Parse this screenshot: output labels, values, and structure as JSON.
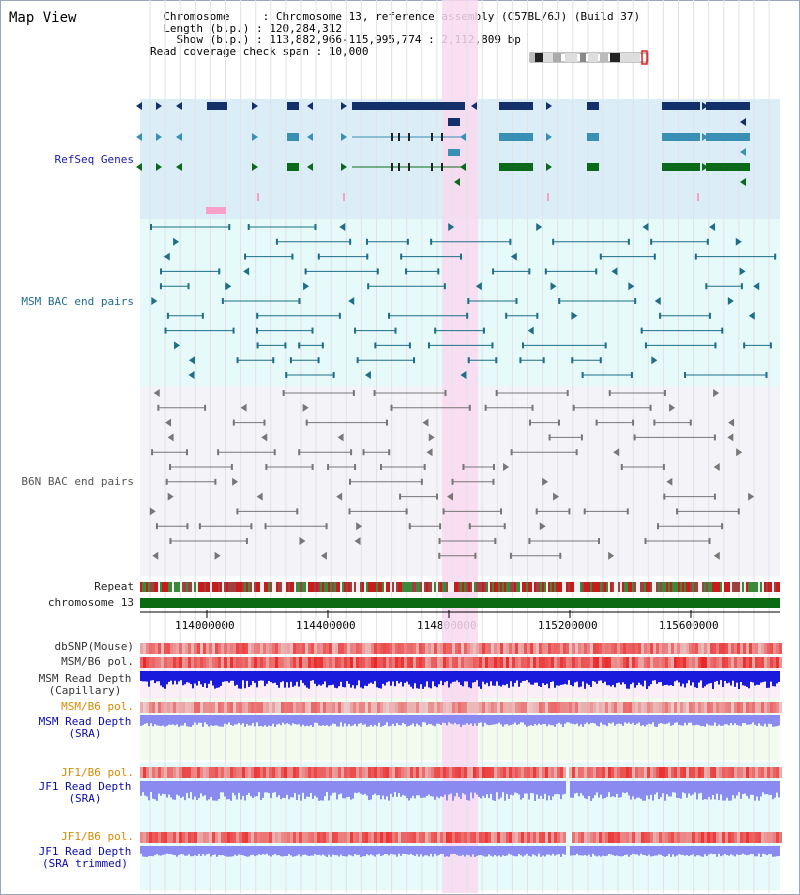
{
  "header": {
    "title": "Map View",
    "info_lines": [
      "  Chromosome     : Chromosome 13, reference assembly (C57BL/6J) (Build 37)",
      "  Length (b.p.) : 120,284,312",
      "    Show (b.p.) : 113,882,966-115,995,774 : 2,112,809 bp",
      "Read coverage check span : 10,000"
    ]
  },
  "tracks": {
    "refseq": "RefSeq Genes",
    "msm_bac": "MSM BAC end pairs",
    "b6n_bac": "B6N BAC end pairs",
    "repeat": "Repeat",
    "chromosome": "chromosome 13",
    "dbsnp": "dbSNP(Mouse)",
    "msm_b6_pol": "MSM/B6 pol.",
    "msm_depth_cap": "MSM Read Depth\n(Capillary)",
    "msm_b6_pol2": "MSM/B6 pol.",
    "msm_depth_sra": "MSM Read Depth\n(SRA)",
    "jf1_b6_pol": "JF1/B6 pol.",
    "jf1_depth_sra": "JF1 Read Depth\n(SRA)",
    "jf1_b6_pol2": "JF1/B6 pol.",
    "jf1_depth_trim": "JF1 Read Depth\n(SRA trimmed)"
  },
  "axis": {
    "ticks": [
      "114000000",
      "114400000",
      "114800000",
      "115200000",
      "115600000"
    ]
  },
  "colors": {
    "refseq_bg": "#dbeef8",
    "msm_bg": "#e6fafa",
    "b6n_bg": "#f3f3f8",
    "highlight": "#f9d8f0",
    "refseq_navy": "#14306a",
    "refseq_teal": "#3a8fb5",
    "refseq_green": "#0a6a1a",
    "msm_line": "#1e6e88",
    "b6n_line": "#777777",
    "chrom_green": "#0b6b12",
    "depth_blue": "#1a1adc",
    "depth_light": "#8a8af0"
  }
}
